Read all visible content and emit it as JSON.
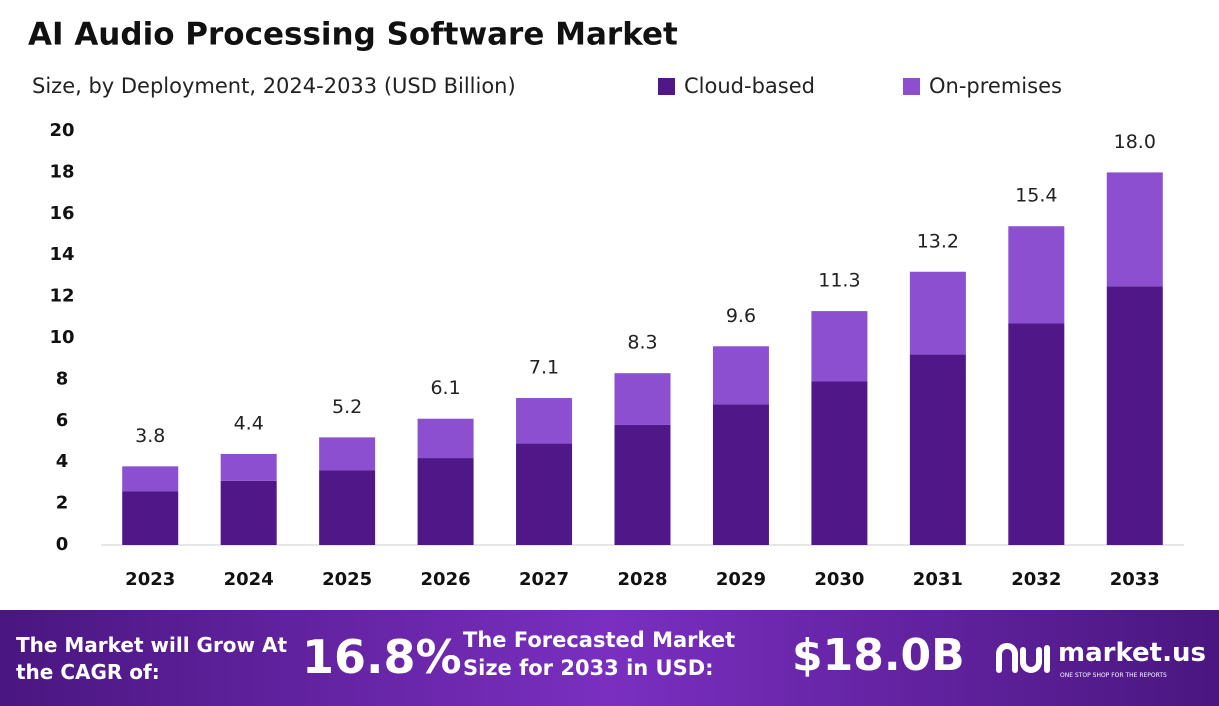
{
  "chart_data": {
    "type": "stacked_bar",
    "title": "AI Audio Processing Software Market",
    "subtitle": "Size, by Deployment, 2024-2033 (USD Billion)",
    "categories": [
      "2023",
      "2024",
      "2025",
      "2026",
      "2027",
      "2028",
      "2029",
      "2030",
      "2031",
      "2032",
      "2033"
    ],
    "series": [
      {
        "name": "Cloud-based",
        "color": "#4f1787",
        "values": [
          2.6,
          3.1,
          3.6,
          4.2,
          4.9,
          5.8,
          6.8,
          7.9,
          9.2,
          10.7,
          12.5
        ]
      },
      {
        "name": "On-premises",
        "color": "#8b4fd0",
        "values": [
          1.2,
          1.3,
          1.6,
          1.9,
          2.2,
          2.5,
          2.8,
          3.4,
          4.0,
          4.7,
          5.5
        ]
      }
    ],
    "totals": [
      3.8,
      4.4,
      5.2,
      6.1,
      7.1,
      8.3,
      9.6,
      11.3,
      13.2,
      15.4,
      18.0
    ],
    "total_labels": [
      "3.8",
      "4.4",
      "5.2",
      "6.1",
      "7.1",
      "8.3",
      "9.6",
      "11.3",
      "13.2",
      "15.4",
      "18.0"
    ],
    "ylim": [
      0,
      20
    ],
    "yticks": [
      0,
      2,
      4,
      6,
      8,
      10,
      12,
      14,
      16,
      18,
      20
    ],
    "grid": false
  },
  "footer": {
    "cagr_text": "The Market will Grow At the CAGR of:",
    "cagr": "16.8%",
    "forecast_text": "The Forecasted Market Size for 2033 in USD:",
    "forecast": "$18.0B",
    "brand": "market.us",
    "tagline": "ONE STOP SHOP FOR THE REPORTS"
  }
}
